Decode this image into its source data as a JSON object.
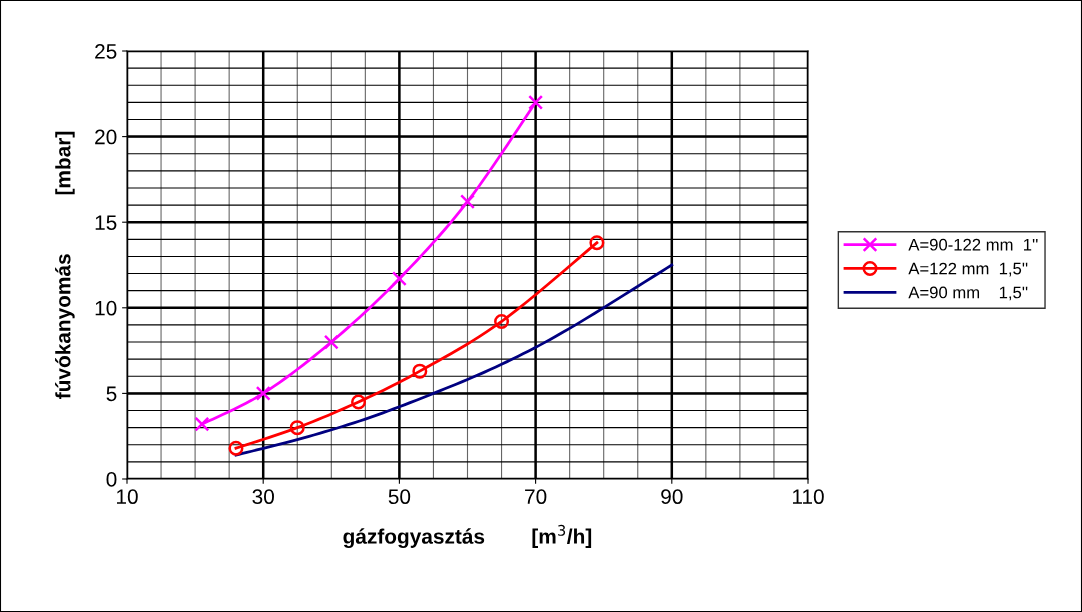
{
  "chart_data": {
    "type": "line",
    "xlabel": "gázfogyasztás        [m$^{3}$/h]",
    "ylabel": "fúvókanyomás          [mbar]",
    "xlim": [
      10,
      110
    ],
    "xticks": [
      10,
      30,
      50,
      70,
      90,
      110
    ],
    "ylim": [
      0,
      25
    ],
    "yticks": [
      0,
      5,
      10,
      15,
      20,
      25
    ],
    "grid": true,
    "legend": "right",
    "series": [
      {
        "name": "A=90-122 mm  1''",
        "color": "#ff00ff",
        "marker": "cross",
        "x": [
          21,
          30,
          40,
          50,
          60,
          70
        ],
        "values": [
          3.2,
          5,
          8,
          11.7,
          16.2,
          22
        ]
      },
      {
        "name": "A=122 mm  1,5''",
        "color": "#ff0000",
        "marker": "circle",
        "x": [
          26,
          35,
          44,
          53,
          65,
          79
        ],
        "values": [
          1.8,
          3,
          4.5,
          6.3,
          9.2,
          13.8
        ]
      },
      {
        "name": "A=90 mm    1,5''",
        "color": "#000080",
        "marker": "none",
        "x": [
          26,
          35,
          45,
          55,
          65,
          75,
          90
        ],
        "values": [
          1.4,
          2.3,
          3.5,
          5.0,
          6.7,
          8.8,
          12.5
        ]
      }
    ]
  }
}
